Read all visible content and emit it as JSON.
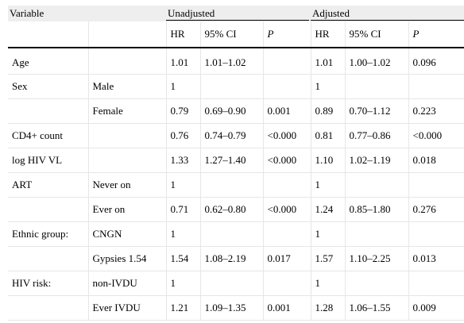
{
  "header": {
    "variable": "Variable",
    "unadjusted": "Unadjusted",
    "adjusted": "Adjusted",
    "hr": "HR",
    "ci": "95% CI",
    "p": "P"
  },
  "rows": [
    {
      "variable": "Age",
      "category": "",
      "u_hr": "1.01",
      "u_ci": "1.01–1.02",
      "u_p": "",
      "a_hr": "1.01",
      "a_ci": "1.00–1.02",
      "a_p": "0.096"
    },
    {
      "variable": "Sex",
      "category": "Male",
      "u_hr": "1",
      "u_ci": "",
      "u_p": "",
      "a_hr": "1",
      "a_ci": "",
      "a_p": ""
    },
    {
      "variable": "",
      "category": "Female",
      "u_hr": "0.79",
      "u_ci": "0.69–0.90",
      "u_p": "0.001",
      "a_hr": "0.89",
      "a_ci": "0.70–1.12",
      "a_p": "0.223"
    },
    {
      "variable": "CD4+ count",
      "category": "",
      "u_hr": "0.76",
      "u_ci": "0.74–0.79",
      "u_p": "<0.000",
      "a_hr": "0.81",
      "a_ci": "0.77–0.86",
      "a_p": "<0.000"
    },
    {
      "variable": "log HIV VL",
      "category": "",
      "u_hr": "1.33",
      "u_ci": "1.27–1.40",
      "u_p": "<0.000",
      "a_hr": "1.10",
      "a_ci": "1.02–1.19",
      "a_p": "0.018"
    },
    {
      "variable": "ART",
      "category": "Never on",
      "u_hr": "1",
      "u_ci": "",
      "u_p": "",
      "a_hr": "1",
      "a_ci": "",
      "a_p": ""
    },
    {
      "variable": "",
      "category": "Ever on",
      "u_hr": "0.71",
      "u_ci": "0.62–0.80",
      "u_p": "<0.000",
      "a_hr": "1.24",
      "a_ci": "0.85–1.80",
      "a_p": "0.276"
    },
    {
      "variable": "Ethnic group:",
      "category": "CNGN",
      "u_hr": "1",
      "u_ci": "",
      "u_p": "",
      "a_hr": "1",
      "a_ci": "",
      "a_p": ""
    },
    {
      "variable": "",
      "category": "Gypsies 1.54",
      "u_hr": "1.54",
      "u_ci": "1.08–2.19",
      "u_p": "0.017",
      "a_hr": "1.57",
      "a_ci": "1.10–2.25",
      "a_p": "0.013"
    },
    {
      "variable": "HIV risk:",
      "category": "non-IVDU",
      "u_hr": "1",
      "u_ci": "",
      "u_p": "",
      "a_hr": "1",
      "a_ci": "",
      "a_p": ""
    },
    {
      "variable": "",
      "category": "Ever IVDU",
      "u_hr": "1.21",
      "u_ci": "1.09–1.35",
      "u_p": "0.001",
      "a_hr": "1.28",
      "a_ci": "1.06–1.55",
      "a_p": "0.009"
    }
  ]
}
